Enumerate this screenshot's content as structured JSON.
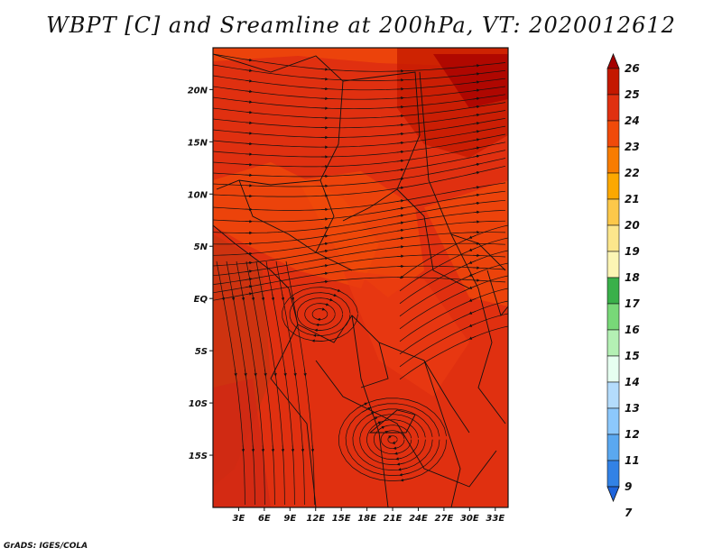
{
  "title": "WBPT [C] and Sreamline at 200hPa, VT: 2020012612",
  "credit": "GrADS: IGES/COLA",
  "map": {
    "lon_range": [
      0,
      34.5
    ],
    "lat_range": [
      -20,
      24
    ],
    "lon_ticks": [
      "3E",
      "6E",
      "9E",
      "12E",
      "15E",
      "18E",
      "21E",
      "24E",
      "27E",
      "30E",
      "33E"
    ],
    "lat_ticks": [
      "20N",
      "15N",
      "10N",
      "5N",
      "EQ",
      "5S",
      "10S",
      "15S"
    ],
    "field": "wet-bulb potential temperature",
    "dominant_color": "#e03010"
  },
  "colorbar": {
    "labels": [
      "26",
      "25",
      "24",
      "23",
      "22",
      "21",
      "20",
      "19",
      "18",
      "17",
      "16",
      "15",
      "14",
      "13",
      "12",
      "11",
      "9",
      "7"
    ],
    "colors": [
      "#a50000",
      "#c41800",
      "#e03010",
      "#f04a0a",
      "#f87c00",
      "#fca800",
      "#fcc84a",
      "#fce68c",
      "#fcf5b4",
      "#3ab04a",
      "#78d878",
      "#b4f0b4",
      "#e6fff0",
      "#b4dcfc",
      "#8cc8fc",
      "#5aa8f0",
      "#3282e6",
      "#1e64dc"
    ]
  }
}
